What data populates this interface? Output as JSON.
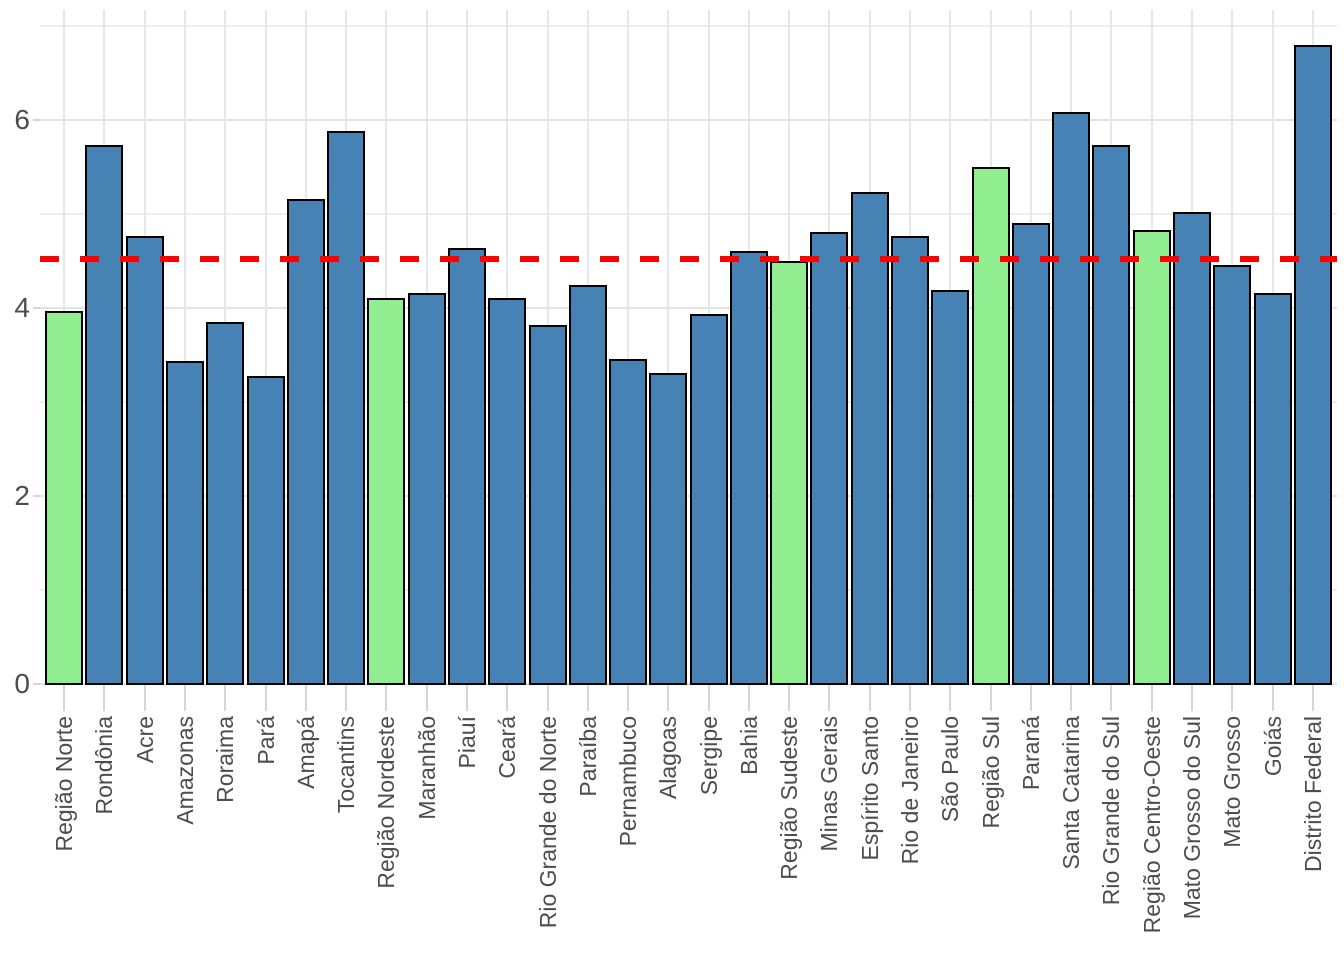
{
  "chart_data": {
    "type": "bar",
    "title": "",
    "xlabel": "",
    "ylabel": "",
    "legend": "none",
    "grid": true,
    "x_tick_rotation": 90,
    "ylim": [
      0,
      7.17
    ],
    "yticks": [
      0,
      2,
      4,
      6
    ],
    "ytick_labels": [
      "0",
      "2",
      "4",
      "6"
    ],
    "categories": [
      "Região Norte",
      "Rondônia",
      "Acre",
      "Amazonas",
      "Roraima",
      "Pará",
      "Amapá",
      "Tocantins",
      "Região Nordeste",
      "Maranhão",
      "Piauí",
      "Ceará",
      "Rio Grande do Norte",
      "Paraíba",
      "Pernambuco",
      "Alagoas",
      "Sergipe",
      "Bahia",
      "Região Sudeste",
      "Minas Gerais",
      "Espírito Santo",
      "Rio de Janeiro",
      "São Paulo",
      "Região Sul",
      "Paraná",
      "Santa Catarina",
      "Rio Grande do Sul",
      "Região Centro-Oeste",
      "Mato Grosso do Sul",
      "Mato Grosso",
      "Goiás",
      "Distrito Federal"
    ],
    "values": [
      3.96,
      5.72,
      4.76,
      3.43,
      3.84,
      3.27,
      5.15,
      5.87,
      4.1,
      4.15,
      4.63,
      4.1,
      3.81,
      4.23,
      3.45,
      3.3,
      3.93,
      4.6,
      4.49,
      4.8,
      5.22,
      4.76,
      4.18,
      5.49,
      4.89,
      6.07,
      5.72,
      4.82,
      5.01,
      4.45,
      4.15,
      6.79
    ],
    "bar_kind": [
      "region",
      "state",
      "state",
      "state",
      "state",
      "state",
      "state",
      "state",
      "region",
      "state",
      "state",
      "state",
      "state",
      "state",
      "state",
      "state",
      "state",
      "state",
      "region",
      "state",
      "state",
      "state",
      "state",
      "region",
      "state",
      "state",
      "state",
      "region",
      "state",
      "state",
      "state",
      "state"
    ],
    "palette": {
      "state": "#4682B4",
      "region": "#90EE90",
      "bar_outline": "#000000",
      "grid_major": "#e3e3e3",
      "grid_minor": "#ededed",
      "grid_vertical": "#e7e7e7",
      "tick": "#d6d6d6",
      "axis_text": "#4d4d4d"
    },
    "reference_line": {
      "y": 4.52,
      "color": "#FF0000",
      "style": "dashed"
    }
  }
}
